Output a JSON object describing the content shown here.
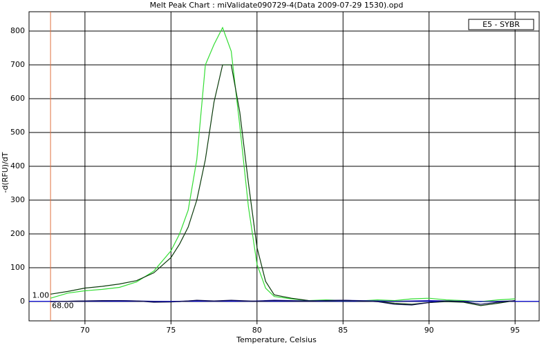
{
  "chart_data": {
    "type": "line",
    "title": "Melt Peak Chart : miValidate090729-4(Data 2009-07-29 1530).opd",
    "x_label": "Temperature, Celsius",
    "y_label": "-d(RFU)/dT",
    "legend": "E5 - SYBR",
    "x": [
      68,
      69,
      70,
      71,
      72,
      73,
      74,
      75,
      75.5,
      76,
      76.5,
      77,
      77.5,
      78,
      78.5,
      79,
      79.5,
      80,
      80.5,
      81,
      82,
      83,
      84,
      85,
      86,
      87,
      88,
      89,
      90,
      91,
      92,
      93,
      94,
      95
    ],
    "series": [
      {
        "color": "#33dd33",
        "values": [
          10,
          25,
          32,
          36,
          42,
          58,
          90,
          150,
          200,
          270,
          420,
          700,
          760,
          810,
          740,
          520,
          280,
          110,
          40,
          15,
          8,
          3,
          5,
          3,
          2,
          5,
          3,
          8,
          10,
          5,
          3,
          0,
          5,
          8
        ]
      },
      {
        "color": "#0a3a0a",
        "values": [
          22,
          30,
          40,
          45,
          52,
          62,
          85,
          130,
          170,
          220,
          300,
          420,
          590,
          700,
          700,
          560,
          350,
          160,
          60,
          20,
          10,
          3,
          2,
          3,
          2,
          0,
          -5,
          -8,
          -3,
          0,
          -2,
          -12,
          -5,
          3
        ]
      },
      {
        "color": "#1a1aa0",
        "values": [
          0,
          1,
          2,
          2,
          3,
          2,
          1,
          0,
          1,
          2,
          3,
          2,
          1,
          2,
          3,
          2,
          1,
          2,
          3,
          4,
          3,
          2,
          3,
          4,
          3,
          2,
          1,
          2,
          3,
          2,
          1,
          0,
          1,
          2
        ]
      },
      {
        "color": "#101050",
        "values": [
          0,
          1,
          2,
          3,
          3,
          2,
          -2,
          -1,
          0,
          2,
          4,
          3,
          2,
          3,
          4,
          3,
          2,
          1,
          2,
          3,
          2,
          1,
          3,
          4,
          2,
          0,
          -8,
          -10,
          -3,
          2,
          0,
          -8,
          -2,
          3
        ]
      }
    ],
    "threshold": {
      "x": 68,
      "x_label": "68.00",
      "y": 1,
      "y_label": "1.00"
    },
    "xlim": [
      66.75,
      96.4
    ],
    "ylim": [
      -57,
      857
    ],
    "xticks": [
      70,
      75,
      80,
      85,
      90,
      95
    ],
    "yticks": [
      0,
      100,
      200,
      300,
      400,
      500,
      600,
      700,
      800
    ],
    "grid": true
  }
}
